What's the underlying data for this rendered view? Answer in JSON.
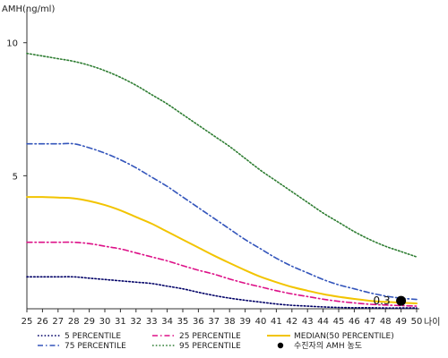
{
  "chart_data": {
    "type": "line",
    "ylabel": "AMH(ng/ml)",
    "xlabel": "나이",
    "xlim": [
      25,
      50
    ],
    "ylim": [
      0,
      11
    ],
    "yticks": [
      5,
      10
    ],
    "x": [
      25,
      26,
      27,
      28,
      29,
      30,
      31,
      32,
      33,
      34,
      35,
      36,
      37,
      38,
      39,
      40,
      41,
      42,
      43,
      44,
      45,
      46,
      47,
      48,
      49,
      50
    ],
    "series": [
      {
        "name": "5 PERCENTILE",
        "color": "#000066",
        "dash": "dotted",
        "values": [
          1.2,
          1.2,
          1.2,
          1.2,
          1.15,
          1.1,
          1.05,
          1.0,
          0.95,
          0.85,
          0.75,
          0.62,
          0.5,
          0.4,
          0.32,
          0.25,
          0.18,
          0.13,
          0.1,
          0.07,
          0.05,
          0.04,
          0.04,
          0.03,
          0.03,
          0.03
        ]
      },
      {
        "name": "25 PERCENTILE",
        "color": "#dd1188",
        "dash": "dashdot",
        "values": [
          2.5,
          2.5,
          2.5,
          2.5,
          2.45,
          2.35,
          2.25,
          2.1,
          1.95,
          1.8,
          1.62,
          1.45,
          1.3,
          1.12,
          0.96,
          0.82,
          0.68,
          0.56,
          0.46,
          0.36,
          0.28,
          0.22,
          0.17,
          0.14,
          0.12,
          0.1
        ]
      },
      {
        "name": "MEDIAN(50 PERCENTILE)",
        "color": "#f2c400",
        "dash": "solid",
        "values": [
          4.2,
          4.2,
          4.18,
          4.15,
          4.05,
          3.9,
          3.7,
          3.45,
          3.2,
          2.9,
          2.6,
          2.3,
          2.0,
          1.72,
          1.45,
          1.2,
          1.0,
          0.82,
          0.68,
          0.55,
          0.45,
          0.37,
          0.3,
          0.26,
          0.23,
          0.2
        ]
      },
      {
        "name": "75 PERCENTILE",
        "color": "#3355bb",
        "dash": "dashdot",
        "values": [
          6.2,
          6.2,
          6.2,
          6.2,
          6.05,
          5.85,
          5.6,
          5.3,
          4.95,
          4.6,
          4.2,
          3.8,
          3.4,
          3.0,
          2.6,
          2.25,
          1.9,
          1.6,
          1.35,
          1.1,
          0.9,
          0.75,
          0.6,
          0.48,
          0.4,
          0.35
        ]
      },
      {
        "name": "95 PERCENTILE",
        "color": "#2e7d32",
        "dash": "dotted",
        "values": [
          9.6,
          9.5,
          9.4,
          9.3,
          9.15,
          8.95,
          8.7,
          8.4,
          8.05,
          7.7,
          7.3,
          6.9,
          6.5,
          6.1,
          5.65,
          5.2,
          4.8,
          4.4,
          4.0,
          3.6,
          3.25,
          2.9,
          2.6,
          2.35,
          2.15,
          1.95
        ]
      }
    ],
    "marker": {
      "name": "수진자의 AMH 농도",
      "x": 49,
      "y": 0.3,
      "label": "0.3",
      "color": "#000000"
    },
    "legend_placement": "bottom",
    "grid": false
  }
}
